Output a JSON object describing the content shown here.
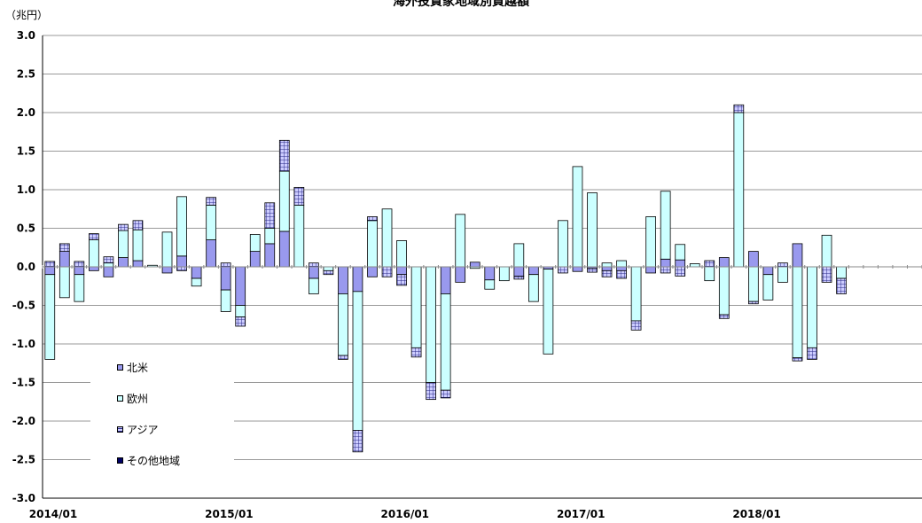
{
  "chart_data": {
    "type": "bar",
    "stacked": true,
    "title": "海外投資家地域別買越額",
    "unit_label": "（兆円）",
    "ylim": [
      -3.0,
      3.0
    ],
    "yticks": [
      "-3.0",
      "-2.5",
      "-2.0",
      "-1.5",
      "-1.0",
      "-0.5",
      "0.0",
      "0.5",
      "1.0",
      "1.5",
      "2.0",
      "2.5",
      "3.0"
    ],
    "xtick_labels": [
      "2014/01",
      "2015/01",
      "2016/01",
      "2017/01",
      "2018/01"
    ],
    "months": [
      "2014/01",
      "2014/02",
      "2014/03",
      "2014/04",
      "2014/05",
      "2014/06",
      "2014/07",
      "2014/08",
      "2014/09",
      "2014/10",
      "2014/11",
      "2014/12",
      "2015/01",
      "2015/02",
      "2015/03",
      "2015/04",
      "2015/05",
      "2015/06",
      "2015/07",
      "2015/08",
      "2015/09",
      "2015/10",
      "2015/11",
      "2015/12",
      "2016/01",
      "2016/02",
      "2016/03",
      "2016/04",
      "2016/05",
      "2016/06",
      "2016/07",
      "2016/08",
      "2016/09",
      "2016/10",
      "2016/11",
      "2016/12",
      "2017/01",
      "2017/02",
      "2017/03",
      "2017/04",
      "2017/05",
      "2017/06",
      "2017/07",
      "2017/08",
      "2017/09",
      "2017/10",
      "2017/11",
      "2017/12",
      "2018/01",
      "2018/02",
      "2018/03",
      "2018/04",
      "2018/05",
      "2018/06",
      "2018/07",
      "2018/08",
      "2018/09",
      "2018/10",
      "2018/11",
      "2018/12"
    ],
    "grid": true,
    "legend_position": "bottom-left",
    "series": [
      {
        "name": "北米",
        "color": "#9999ee",
        "hatch": "none",
        "values": [
          -0.1,
          0.2,
          -0.1,
          -0.05,
          -0.13,
          0.12,
          0.08,
          0.0,
          -0.08,
          0.14,
          -0.15,
          0.35,
          -0.3,
          -0.5,
          0.2,
          0.3,
          0.46,
          0.0,
          -0.15,
          0.0,
          -0.35,
          -0.32,
          -0.13,
          0.0,
          -0.1,
          0.0,
          0.0,
          -0.35,
          -0.2,
          0.06,
          -0.17,
          0.0,
          -0.12,
          -0.1,
          -0.03,
          0.0,
          -0.06,
          -0.02,
          -0.05,
          -0.05,
          0.0,
          -0.08,
          0.1,
          0.09,
          0.0,
          0.0,
          0.12,
          0.0,
          0.2,
          -0.1,
          0.0,
          0.3,
          0.0,
          0.0,
          0.0,
          0.0,
          0.0,
          0.0,
          0.0,
          0.0
        ]
      },
      {
        "name": "欧州",
        "color": "#ccffff",
        "hatch": "none",
        "values": [
          -1.1,
          -0.4,
          -0.35,
          0.35,
          0.05,
          0.35,
          0.4,
          0.02,
          0.45,
          0.77,
          -0.1,
          0.45,
          -0.28,
          -0.15,
          0.22,
          0.2,
          0.78,
          0.8,
          -0.2,
          -0.05,
          -0.8,
          -1.8,
          0.6,
          0.75,
          0.34,
          -1.05,
          -1.5,
          -1.25,
          0.68,
          -0.02,
          -0.12,
          -0.18,
          0.3,
          -0.35,
          -1.1,
          0.6,
          1.3,
          0.96,
          0.05,
          0.08,
          -0.7,
          0.65,
          0.88,
          0.2,
          0.04,
          -0.18,
          -0.62,
          2.0,
          -0.45,
          -0.33,
          -0.2,
          -1.18,
          -1.05,
          0.41,
          -0.15,
          0.0,
          0.0,
          0.0,
          0.0,
          0.0
        ]
      },
      {
        "name": "アジア",
        "color": "#ccccff",
        "hatch": "grid",
        "values": [
          0.07,
          0.1,
          0.07,
          0.08,
          0.08,
          0.08,
          0.12,
          0.0,
          0.0,
          -0.05,
          0.0,
          0.1,
          0.05,
          -0.12,
          0.0,
          0.33,
          0.4,
          0.23,
          0.05,
          -0.05,
          -0.05,
          -0.28,
          0.05,
          -0.13,
          -0.14,
          -0.12,
          -0.22,
          -0.1,
          0.0,
          0.0,
          0.0,
          0.0,
          -0.04,
          0.0,
          0.0,
          -0.08,
          0.0,
          -0.05,
          -0.08,
          -0.1,
          -0.12,
          0.0,
          -0.08,
          -0.12,
          0.0,
          0.08,
          -0.05,
          0.1,
          -0.03,
          0.0,
          0.05,
          -0.04,
          -0.15,
          -0.2,
          -0.2,
          0.0,
          0.0,
          0.0,
          0.0,
          0.0
        ]
      },
      {
        "name": "その他地域",
        "color": "#000066",
        "hatch": "none",
        "values": [
          0.0,
          0.0,
          0.0,
          0.0,
          0.0,
          0.0,
          0.0,
          0.0,
          0.0,
          0.0,
          0.0,
          0.0,
          0.0,
          0.0,
          0.0,
          0.0,
          0.0,
          0.0,
          0.0,
          0.0,
          0.0,
          0.0,
          0.0,
          0.0,
          0.0,
          0.0,
          0.0,
          0.0,
          0.0,
          0.0,
          0.0,
          0.0,
          0.0,
          0.0,
          0.0,
          0.0,
          0.0,
          0.0,
          0.0,
          0.0,
          0.0,
          0.0,
          0.0,
          0.0,
          0.0,
          0.0,
          0.0,
          0.0,
          0.0,
          0.0,
          0.0,
          0.0,
          0.0,
          0.0,
          0.0,
          0.0,
          0.0,
          0.0,
          0.0,
          0.0
        ]
      }
    ]
  }
}
